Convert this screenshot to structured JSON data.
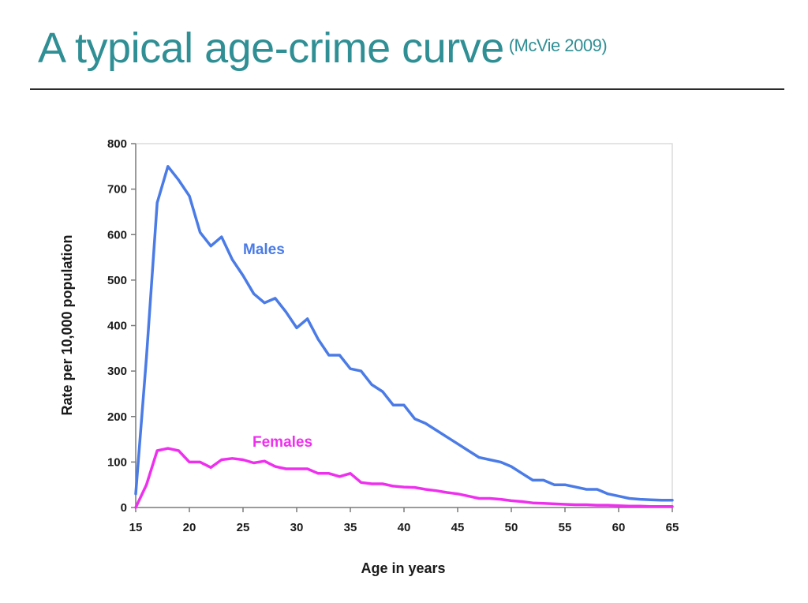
{
  "slide": {
    "title": "A typical age-crime curve",
    "citation": "(McVie 2009)"
  },
  "chart_data": {
    "type": "line",
    "xlabel": "Age in years",
    "ylabel": "Rate per 10,000 population",
    "xlim": [
      15,
      65
    ],
    "ylim": [
      0,
      800
    ],
    "xticks": [
      15,
      20,
      25,
      30,
      35,
      40,
      45,
      50,
      55,
      60,
      65
    ],
    "yticks": [
      0,
      100,
      200,
      300,
      400,
      500,
      600,
      700,
      800
    ],
    "grid": false,
    "x": [
      15,
      16,
      17,
      18,
      19,
      20,
      21,
      22,
      23,
      24,
      25,
      26,
      27,
      28,
      29,
      30,
      31,
      32,
      33,
      34,
      35,
      36,
      37,
      38,
      39,
      40,
      41,
      42,
      43,
      44,
      45,
      46,
      47,
      48,
      49,
      50,
      51,
      52,
      53,
      54,
      55,
      56,
      57,
      58,
      59,
      60,
      61,
      62,
      63,
      64,
      65
    ],
    "series": [
      {
        "name": "Males",
        "color": "#4a7be6",
        "values": [
          30,
          330,
          670,
          750,
          720,
          685,
          605,
          575,
          595,
          545,
          510,
          470,
          450,
          460,
          430,
          395,
          415,
          370,
          335,
          335,
          305,
          300,
          270,
          255,
          225,
          225,
          195,
          185,
          170,
          155,
          140,
          125,
          110,
          105,
          100,
          90,
          75,
          60,
          60,
          50,
          50,
          45,
          40,
          40,
          30,
          25,
          20,
          18,
          17,
          16,
          16
        ]
      },
      {
        "name": "Females",
        "color": "#ee30ee",
        "values": [
          0,
          50,
          125,
          130,
          125,
          100,
          100,
          88,
          105,
          108,
          105,
          98,
          102,
          90,
          85,
          85,
          85,
          75,
          75,
          68,
          75,
          55,
          52,
          52,
          47,
          45,
          44,
          40,
          37,
          33,
          30,
          25,
          20,
          20,
          18,
          15,
          13,
          10,
          9,
          8,
          7,
          6,
          6,
          5,
          5,
          4,
          3,
          3,
          2,
          2,
          2
        ]
      }
    ]
  }
}
